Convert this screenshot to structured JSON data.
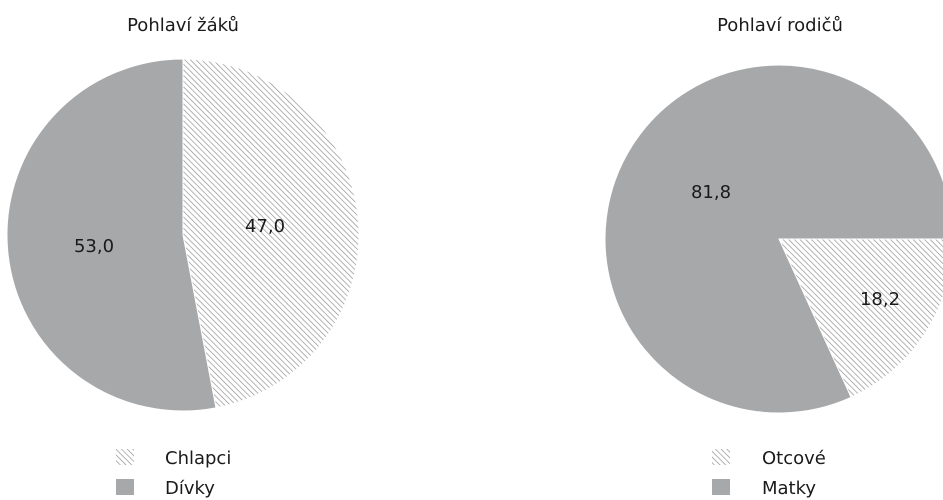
{
  "chart_data": [
    {
      "type": "pie",
      "title": "Pohlaví žáků",
      "series": [
        {
          "name": "Chlapci",
          "value": 47.0,
          "label": "47,0",
          "fill": "hatch"
        },
        {
          "name": "Dívky",
          "value": 53.0,
          "label": "53,0",
          "fill": "#a7a8aa"
        }
      ]
    },
    {
      "type": "pie",
      "title": "Pohlaví rodičů",
      "series": [
        {
          "name": "Otcové",
          "value": 18.2,
          "label": "18,2",
          "fill": "hatch"
        },
        {
          "name": "Matky",
          "value": 81.8,
          "label": "81,8",
          "fill": "#a7a8aa"
        }
      ]
    }
  ],
  "colors": {
    "solid": "#a7a8aa",
    "hatch_line": "#8c8c8c",
    "text": "#1a1a1a"
  }
}
